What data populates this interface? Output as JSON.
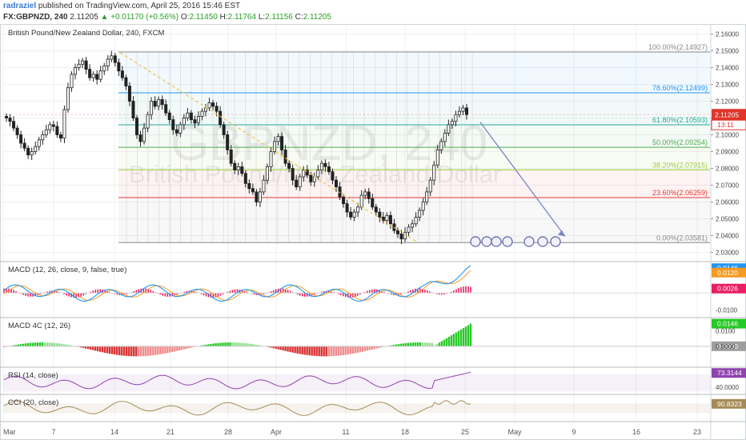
{
  "header": {
    "author": "radraziel",
    "published_text": "published on TradingView.com, April 25, 2016 15:46 EST",
    "symbol": "FX:GBPNZD, 240",
    "last": "2.11205",
    "change": "▲ +0.01170 (+0.56%)",
    "o_label": "O:",
    "o_value": "2.11450",
    "h_label": "H:",
    "h_value": "2.11764",
    "l_label": "L:",
    "l_value": "2.11156",
    "c_label": "C:",
    "c_value": "2.11205"
  },
  "colors": {
    "up": "#2aa02a",
    "down": "#e0352b",
    "candle": "#222222",
    "macd": "#2196f3",
    "signal": "#f59a23",
    "hist": "#e91e63",
    "rsi": "#8e44ad",
    "cci": "#a58b57"
  },
  "chart_data": [
    {
      "type": "candlestick",
      "title": "British Pound/New Zealand Dollar, 240, FXCM",
      "watermark_symbol": "GBPNZD, 240",
      "watermark_name": "British Pound/New Zealand Dollar",
      "x_tick_labels": [
        "Mar",
        "7",
        "14",
        "21",
        "28",
        "Apr",
        "11",
        "18",
        "25",
        "May",
        "9",
        "16",
        "23"
      ],
      "y_tick_labels": [
        "2.16000",
        "2.15000",
        "2.14000",
        "2.13000",
        "2.12000",
        "2.11000",
        "2.10000",
        "2.09000",
        "2.08000",
        "2.07000",
        "2.06000",
        "2.05000",
        "2.04000",
        "2.03000"
      ],
      "ylim": [
        2.025,
        2.165
      ],
      "last_price_label": "2.11205",
      "countdown_label": "13:11",
      "fib_levels": [
        {
          "label": "100.00%(2.14927)",
          "value": 2.14927,
          "color": "#888888"
        },
        {
          "label": "78.60%(2.12499)",
          "value": 2.12499,
          "color": "#2196f3"
        },
        {
          "label": "61.80%(2.10593)",
          "value": 2.10593,
          "color": "#26a69a"
        },
        {
          "label": "50.00%(2.09254)",
          "value": 2.09254,
          "color": "#4caf50"
        },
        {
          "label": "38.20%(2.07915)",
          "value": 2.07915,
          "color": "#9ccc3a"
        },
        {
          "label": "23.60%(2.06259)",
          "value": 2.06259,
          "color": "#e53935"
        },
        {
          "label": "0.00%(2.03581)",
          "value": 2.03581,
          "color": "#888888"
        }
      ],
      "close_path": [
        2.11,
        2.108,
        2.104,
        2.1,
        2.095,
        2.092,
        2.088,
        2.09,
        2.093,
        2.097,
        2.1,
        2.103,
        2.106,
        2.105,
        2.1,
        2.098,
        2.115,
        2.128,
        2.136,
        2.14,
        2.142,
        2.144,
        2.139,
        2.134,
        2.136,
        2.133,
        2.138,
        2.141,
        2.145,
        2.147,
        2.143,
        2.138,
        2.134,
        2.129,
        2.12,
        2.11,
        2.1,
        2.096,
        2.104,
        2.112,
        2.12,
        2.117,
        2.121,
        2.118,
        2.113,
        2.109,
        2.103,
        2.101,
        2.106,
        2.11,
        2.113,
        2.109,
        2.107,
        2.111,
        2.114,
        2.116,
        2.119,
        2.117,
        2.114,
        2.106,
        2.1,
        2.091,
        2.083,
        2.079,
        2.081,
        2.077,
        2.071,
        2.068,
        2.066,
        2.06,
        2.066,
        2.073,
        2.081,
        2.09,
        2.096,
        2.099,
        2.091,
        2.083,
        2.08,
        2.073,
        2.069,
        2.075,
        2.079,
        2.076,
        2.072,
        2.075,
        2.079,
        2.083,
        2.081,
        2.078,
        2.073,
        2.069,
        2.063,
        2.059,
        2.054,
        2.051,
        2.054,
        2.057,
        2.064,
        2.066,
        2.062,
        2.057,
        2.054,
        2.051,
        2.049,
        2.052,
        2.047,
        2.043,
        2.041,
        2.038,
        2.042,
        2.045,
        2.047,
        2.051,
        2.055,
        2.06,
        2.066,
        2.073,
        2.082,
        2.091,
        2.096,
        2.101,
        2.106,
        2.108,
        2.112,
        2.114,
        2.116,
        2.112
      ]
    },
    {
      "type": "line",
      "title": "MACD (12, 26, close, 9, false, true)",
      "y_tick_labels": [
        "-0.0100"
      ],
      "value_labels": [
        {
          "label": "0.0146",
          "value": 0.0146,
          "color": "#2196f3"
        },
        {
          "label": "0.0120",
          "value": 0.012,
          "color": "#f59a23"
        },
        {
          "label": "0.0026",
          "value": 0.0026,
          "color": "#e91e63"
        }
      ],
      "ylim": [
        -0.014,
        0.018
      ]
    },
    {
      "type": "bar",
      "title": "MACD 4C (12, 26)",
      "y_tick_labels": [
        "0.0100",
        "0.0000"
      ],
      "value_labels": [
        {
          "label": "0.0146",
          "value": 0.0146,
          "color": "#26c926"
        },
        {
          "label": "0.0000",
          "value": 0.0,
          "color": "#9e9e9e"
        }
      ],
      "ylim": [
        -0.013,
        0.018
      ]
    },
    {
      "type": "line",
      "title": "RSI (14, close)",
      "y_tick_labels": [
        "40.0000"
      ],
      "value_labels": [
        {
          "label": "73.3144",
          "value": 73.3144,
          "color": "#8e44ad"
        }
      ],
      "ylim": [
        25,
        85
      ],
      "band": [
        30,
        70
      ]
    },
    {
      "type": "line",
      "title": "CCI (20, close)",
      "y_tick_labels": [],
      "value_labels": [
        {
          "label": "90.8323",
          "value": 90.8323,
          "color": "#a58b57"
        }
      ],
      "ylim": [
        -260,
        270
      ],
      "band": [
        -100,
        100
      ]
    }
  ]
}
